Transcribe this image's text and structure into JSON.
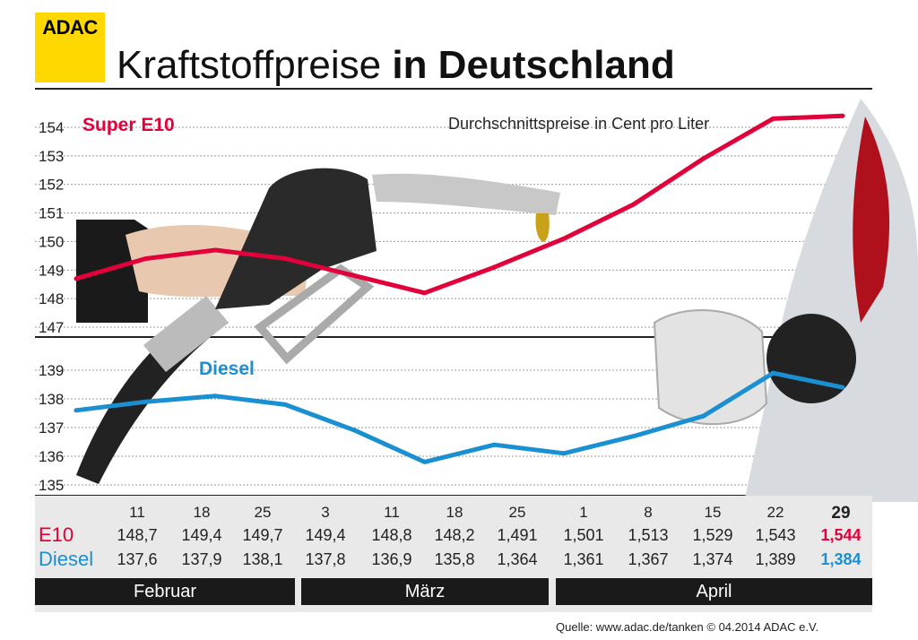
{
  "brand": {
    "logo_text": "ADAC",
    "logo_color": "#ffd800"
  },
  "title": {
    "light": "Kraftstoffpreise",
    "bold": "in Deutschland"
  },
  "subtitle": "Durchschnittspreise in Cent pro Liter",
  "colors": {
    "e10": "#e2003a",
    "diesel": "#1a8fd1"
  },
  "chart_data": [
    {
      "type": "line",
      "name": "Super E10",
      "x": [
        "11",
        "18",
        "25",
        "3",
        "11",
        "18",
        "25",
        "1",
        "8",
        "15",
        "22",
        "29"
      ],
      "values": [
        148.7,
        149.4,
        149.7,
        149.4,
        148.8,
        148.2,
        149.1,
        150.1,
        151.3,
        152.9,
        154.3,
        154.4
      ],
      "yticks": [
        147,
        148,
        149,
        150,
        151,
        152,
        153,
        154
      ],
      "ylim": [
        147,
        154
      ],
      "grid": true
    },
    {
      "type": "line",
      "name": "Diesel",
      "x": [
        "11",
        "18",
        "25",
        "3",
        "11",
        "18",
        "25",
        "1",
        "8",
        "15",
        "22",
        "29"
      ],
      "values": [
        137.6,
        137.9,
        138.1,
        137.8,
        136.9,
        135.8,
        136.4,
        136.1,
        136.7,
        137.4,
        138.9,
        138.4
      ],
      "yticks": [
        135,
        136,
        137,
        138,
        139
      ],
      "ylim": [
        135,
        139
      ],
      "grid": true
    }
  ],
  "table": {
    "dates": [
      "11",
      "18",
      "25",
      "3",
      "11",
      "18",
      "25",
      "1",
      "8",
      "15",
      "22",
      "29"
    ],
    "e10_label": "E10",
    "diesel_label": "Diesel",
    "e10": [
      "148,7",
      "149,4",
      "149,7",
      "149,4",
      "148,8",
      "148,2",
      "1,491",
      "1,501",
      "1,513",
      "1,529",
      "1,543",
      "1,544"
    ],
    "diesel": [
      "137,6",
      "137,9",
      "138,1",
      "137,8",
      "136,9",
      "135,8",
      "1,364",
      "1,361",
      "1,367",
      "1,374",
      "1,389",
      "1,384"
    ],
    "months": [
      "Februar",
      "März",
      "April"
    ]
  },
  "source": "Quelle: www.adac.de/tanken  © 04.2014  ADAC e.V."
}
